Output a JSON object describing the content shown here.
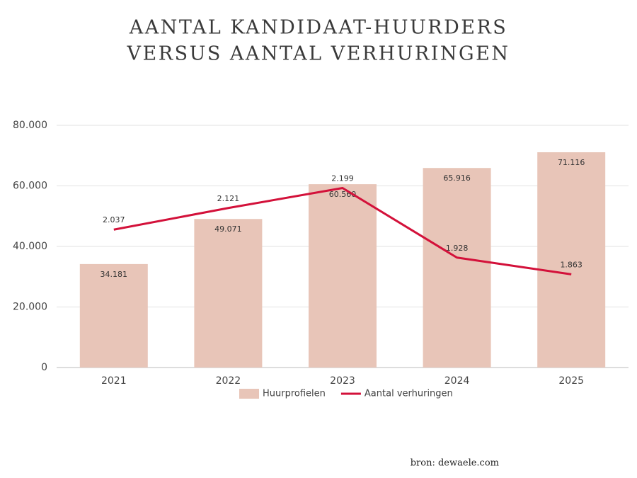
{
  "chart_data": {
    "type": "bar",
    "title": [
      "AANTAL KANDIDAAT-HUURDERS",
      "VERSUS AANTAL VERHURINGEN"
    ],
    "categories": [
      "2021",
      "2022",
      "2023",
      "2024",
      "2025"
    ],
    "series": [
      {
        "name": "Huurprofielen",
        "type": "bar",
        "color": "#e8c5b8",
        "values": [
          34181,
          49071,
          60560,
          65916,
          71116
        ],
        "value_labels": [
          "34.181",
          "49.071",
          "60.560",
          "65.916",
          "71.116"
        ]
      },
      {
        "name": "Aantal verhuringen",
        "type": "line",
        "axis": "y2",
        "color": "#d3113a",
        "values": [
          2037,
          2121,
          2199,
          1928,
          1863
        ],
        "value_labels": [
          "2.037",
          "2.121",
          "2.199",
          "1.928",
          "1.863"
        ]
      }
    ],
    "ylim": [
      0,
      80000
    ],
    "yticks": [
      0,
      {
        "value": 20000,
        "label": "20.000"
      },
      {
        "value": 40000,
        "label": "40.000"
      },
      {
        "value": 60000,
        "label": "60.000"
      },
      {
        "value": 80000,
        "label": "80.000"
      }
    ],
    "y2lim": [
      1500,
      2443
    ],
    "grid": true,
    "legend": "bottom",
    "source": "bron: dewaele.com"
  }
}
